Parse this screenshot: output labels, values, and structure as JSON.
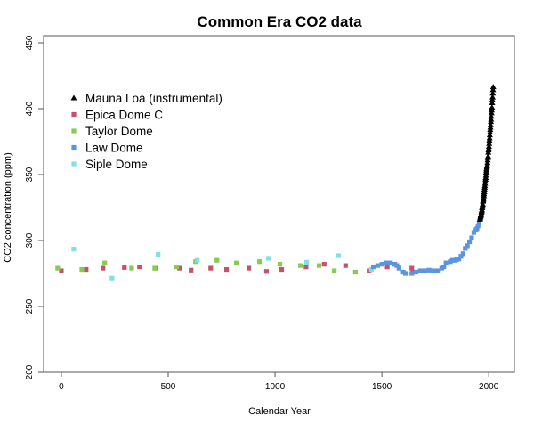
{
  "chart_data": {
    "type": "scatter",
    "title": "Common Era CO2 data",
    "xlabel": "Calendar Year",
    "ylabel": "CO2 concentration (ppm)",
    "xlim": [
      -83,
      2120
    ],
    "ylim": [
      200,
      450
    ],
    "xticks": [
      0,
      500,
      1000,
      1500,
      2000
    ],
    "yticks": [
      200,
      250,
      300,
      350,
      400,
      450
    ],
    "grid": false,
    "legend_position": "top-left",
    "series": [
      {
        "name": "Mauna Loa (instrumental)",
        "marker": "triangle",
        "color": "#000000",
        "points": [
          [
            1959,
            315.98
          ],
          [
            1960,
            316.91
          ],
          [
            1961,
            317.64
          ],
          [
            1962,
            318.45
          ],
          [
            1963,
            318.99
          ],
          [
            1964,
            319.62
          ],
          [
            1965,
            320.04
          ],
          [
            1966,
            321.37
          ],
          [
            1967,
            322.18
          ],
          [
            1968,
            323.05
          ],
          [
            1969,
            324.62
          ],
          [
            1970,
            325.68
          ],
          [
            1971,
            326.32
          ],
          [
            1972,
            327.46
          ],
          [
            1973,
            329.68
          ],
          [
            1974,
            330.19
          ],
          [
            1975,
            331.13
          ],
          [
            1976,
            332.03
          ],
          [
            1977,
            333.84
          ],
          [
            1978,
            335.41
          ],
          [
            1979,
            336.84
          ],
          [
            1980,
            338.76
          ],
          [
            1981,
            340.12
          ],
          [
            1982,
            341.48
          ],
          [
            1983,
            343.15
          ],
          [
            1984,
            344.87
          ],
          [
            1985,
            346.35
          ],
          [
            1986,
            347.61
          ],
          [
            1987,
            349.31
          ],
          [
            1988,
            351.69
          ],
          [
            1989,
            353.2
          ],
          [
            1990,
            354.45
          ],
          [
            1991,
            355.7
          ],
          [
            1992,
            356.54
          ],
          [
            1993,
            357.21
          ],
          [
            1994,
            358.96
          ],
          [
            1995,
            360.97
          ],
          [
            1996,
            362.74
          ],
          [
            1997,
            363.88
          ],
          [
            1998,
            366.84
          ],
          [
            1999,
            368.54
          ],
          [
            2000,
            369.71
          ],
          [
            2001,
            371.32
          ],
          [
            2002,
            373.45
          ],
          [
            2003,
            375.98
          ],
          [
            2004,
            377.7
          ],
          [
            2005,
            379.98
          ],
          [
            2006,
            382.09
          ],
          [
            2007,
            384.02
          ],
          [
            2008,
            385.83
          ],
          [
            2009,
            387.64
          ],
          [
            2010,
            390.1
          ],
          [
            2011,
            391.85
          ],
          [
            2012,
            394.06
          ],
          [
            2013,
            396.74
          ],
          [
            2014,
            398.81
          ],
          [
            2015,
            401.01
          ],
          [
            2016,
            404.41
          ],
          [
            2017,
            406.76
          ],
          [
            2018,
            408.72
          ],
          [
            2019,
            411.66
          ],
          [
            2020,
            414.24
          ],
          [
            2021,
            416.45
          ]
        ]
      },
      {
        "name": "Epica Dome C",
        "marker": "square",
        "color": "#c8506a",
        "points": [
          [
            0,
            277
          ],
          [
            116,
            278
          ],
          [
            195,
            279
          ],
          [
            295,
            279.5
          ],
          [
            366,
            280
          ],
          [
            441,
            279
          ],
          [
            553,
            279
          ],
          [
            607,
            277.5
          ],
          [
            699,
            279
          ],
          [
            773,
            278
          ],
          [
            877,
            279
          ],
          [
            960,
            276.5
          ],
          [
            1031,
            278
          ],
          [
            1145,
            280
          ],
          [
            1230,
            282
          ],
          [
            1330,
            281
          ],
          [
            1440,
            277
          ],
          [
            1525,
            280
          ],
          [
            1560,
            282
          ],
          [
            1640,
            279
          ],
          [
            1645,
            276
          ]
        ]
      },
      {
        "name": "Taylor Dome",
        "marker": "square",
        "color": "#86cc4e",
        "points": [
          [
            -17,
            279
          ],
          [
            96,
            278
          ],
          [
            203,
            283
          ],
          [
            329,
            279
          ],
          [
            437,
            279
          ],
          [
            540,
            280
          ],
          [
            628,
            284
          ],
          [
            728,
            285
          ],
          [
            819,
            283
          ],
          [
            927,
            284
          ],
          [
            1023,
            282
          ],
          [
            1119,
            281
          ],
          [
            1206,
            281
          ],
          [
            1277,
            277
          ],
          [
            1376,
            276
          ],
          [
            1530,
            283
          ]
        ]
      },
      {
        "name": "Law Dome",
        "marker": "square",
        "color": "#5b94e2",
        "points": [
          [
            1460,
            280
          ],
          [
            1480,
            281
          ],
          [
            1500,
            282
          ],
          [
            1520,
            283
          ],
          [
            1540,
            283
          ],
          [
            1560,
            282
          ],
          [
            1570,
            281
          ],
          [
            1580,
            279
          ],
          [
            1600,
            276
          ],
          [
            1610,
            275
          ],
          [
            1640,
            275
          ],
          [
            1660,
            276
          ],
          [
            1680,
            277
          ],
          [
            1700,
            277
          ],
          [
            1720,
            277.5
          ],
          [
            1740,
            277
          ],
          [
            1760,
            277
          ],
          [
            1780,
            279
          ],
          [
            1790,
            280
          ],
          [
            1800,
            283
          ],
          [
            1820,
            284
          ],
          [
            1830,
            285
          ],
          [
            1840,
            285
          ],
          [
            1850,
            285.5
          ],
          [
            1860,
            286
          ],
          [
            1870,
            288
          ],
          [
            1880,
            290
          ],
          [
            1890,
            294
          ],
          [
            1900,
            296
          ],
          [
            1910,
            299
          ],
          [
            1920,
            302
          ],
          [
            1930,
            306
          ],
          [
            1940,
            308
          ],
          [
            1945,
            309
          ],
          [
            1950,
            311
          ],
          [
            1955,
            313
          ],
          [
            1960,
            317
          ],
          [
            1965,
            320
          ],
          [
            1970,
            325
          ],
          [
            1975,
            330
          ],
          [
            1978,
            333
          ]
        ]
      },
      {
        "name": "Siple Dome",
        "marker": "square",
        "color": "#7fe1e6",
        "points": [
          [
            58,
            293.5
          ],
          [
            237,
            271.5
          ],
          [
            453,
            289.5
          ],
          [
            636,
            285
          ],
          [
            969,
            286.5
          ],
          [
            1148,
            283.5
          ],
          [
            1297,
            288.5
          ],
          [
            1451,
            278
          ],
          [
            1580,
            280
          ]
        ]
      }
    ]
  }
}
